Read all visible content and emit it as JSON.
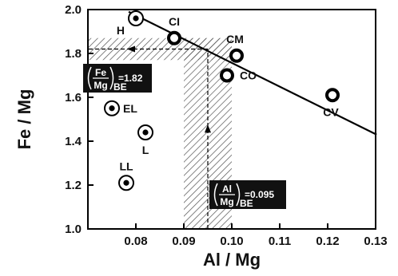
{
  "chart_data": {
    "type": "scatter",
    "xlabel": "Al / Mg",
    "ylabel": "Fe / Mg",
    "xlim": [
      0.07,
      0.13
    ],
    "ylim": [
      1.0,
      2.0
    ],
    "x_ticks": [
      "0.08",
      "0.09",
      "0.10",
      "0.11",
      "0.12",
      "0.13"
    ],
    "y_ticks": [
      "1.0",
      "1.2",
      "1.4",
      "1.6",
      "1.8",
      "2.0"
    ],
    "grid": false,
    "points": [
      {
        "label": "H",
        "x": 0.08,
        "y": 1.96,
        "group": "ordinary"
      },
      {
        "label": "CI",
        "x": 0.088,
        "y": 1.87,
        "group": "carbonaceous"
      },
      {
        "label": "CM",
        "x": 0.101,
        "y": 1.79,
        "group": "carbonaceous"
      },
      {
        "label": "CO",
        "x": 0.099,
        "y": 1.7,
        "group": "carbonaceous"
      },
      {
        "label": "CV",
        "x": 0.121,
        "y": 1.61,
        "group": "carbonaceous"
      },
      {
        "label": "EL",
        "x": 0.075,
        "y": 1.55,
        "group": "ordinary"
      },
      {
        "label": "L",
        "x": 0.082,
        "y": 1.44,
        "group": "ordinary"
      },
      {
        "label": "LL",
        "x": 0.078,
        "y": 1.21,
        "group": "ordinary"
      }
    ],
    "trend_line": {
      "x": [
        0.0785,
        0.1302
      ],
      "y": [
        1.99,
        1.43
      ]
    },
    "bulk_earth": {
      "fe_mg": {
        "value": 1.82,
        "range": [
          1.77,
          1.87
        ],
        "label_num": "Fe",
        "label_den": "Mg",
        "label_value": "=1.82",
        "label_sub": "BE"
      },
      "al_mg": {
        "value": 0.095,
        "range": [
          0.09,
          0.1
        ],
        "label_num": "Al",
        "label_den": "Mg",
        "label_value": "=0.095",
        "label_sub": "BE"
      }
    }
  }
}
